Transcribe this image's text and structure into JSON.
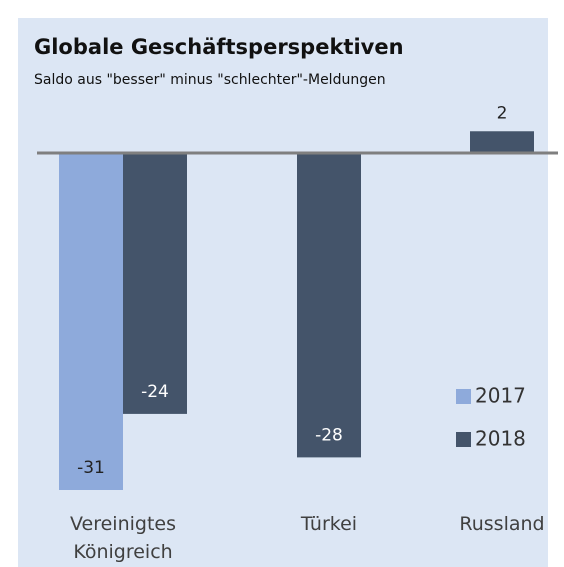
{
  "chart_data": {
    "type": "bar",
    "title": "Globale Geschäftsperspektiven",
    "subtitle": "Saldo aus \"besser\" minus \"schlechter\"-Meldungen",
    "categories": [
      "Vereinigtes Königreich",
      "Türkei",
      "Russland"
    ],
    "series": [
      {
        "name": "2017",
        "color": "#8eaadb",
        "values": [
          -31,
          null,
          null
        ]
      },
      {
        "name": "2018",
        "color": "#44546a",
        "values": [
          -24,
          -28,
          2
        ]
      }
    ],
    "legend": "right"
  }
}
